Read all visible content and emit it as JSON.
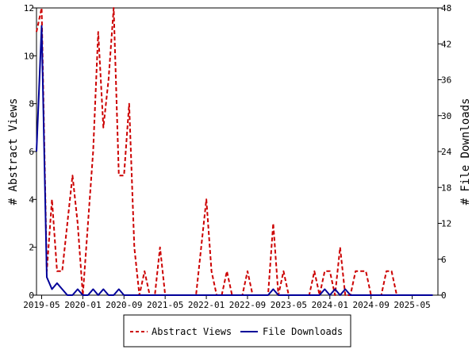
{
  "chart_data": {
    "type": "line",
    "title": "",
    "xlabel": "",
    "ylabel": "# Abstract Views",
    "ylabel_right": "# File Downloads",
    "x_ticks": [
      "2019-05",
      "2020-01",
      "2020-09",
      "2021-05",
      "2022-01",
      "2022-09",
      "2023-05",
      "2024-01",
      "2024-09",
      "2025-05"
    ],
    "ylim_left": [
      0,
      12
    ],
    "ylim_right": [
      0,
      48
    ],
    "yticks_left": [
      "0",
      "2",
      "4",
      "6",
      "8",
      "10",
      "12"
    ],
    "yticks_right": [
      "0",
      "6",
      "12",
      "18",
      "24",
      "30",
      "36",
      "42",
      "48"
    ],
    "grid": false,
    "legend_position": "bottom",
    "series": [
      {
        "name": "Abstract Views",
        "axis": "left",
        "color": "#cc0000",
        "style": "dashed",
        "x": [
          "2019-04",
          "2019-05",
          "2019-06",
          "2019-07",
          "2019-08",
          "2019-09",
          "2019-10",
          "2019-11",
          "2019-12",
          "2020-01",
          "2020-02",
          "2020-03",
          "2020-04",
          "2020-05",
          "2020-06",
          "2020-07",
          "2020-08",
          "2020-09",
          "2020-10",
          "2020-11",
          "2020-12",
          "2021-01",
          "2021-02",
          "2021-03",
          "2021-04",
          "2021-05",
          "2021-06",
          "2021-07",
          "2021-08",
          "2021-09",
          "2021-10",
          "2021-11",
          "2021-12",
          "2022-01",
          "2022-02",
          "2022-03",
          "2022-04",
          "2022-05",
          "2022-06",
          "2022-07",
          "2022-08",
          "2022-09",
          "2022-10",
          "2022-11",
          "2022-12",
          "2023-01",
          "2023-02",
          "2023-03",
          "2023-04",
          "2023-05",
          "2023-06",
          "2023-07",
          "2023-08",
          "2023-09",
          "2023-10",
          "2023-11",
          "2023-12",
          "2024-01",
          "2024-02",
          "2024-03",
          "2024-04",
          "2024-05",
          "2024-06",
          "2024-07",
          "2024-08",
          "2024-09",
          "2024-10",
          "2024-11",
          "2024-12",
          "2025-01",
          "2025-02",
          "2025-03",
          "2025-04",
          "2025-05",
          "2025-06",
          "2025-07",
          "2025-08",
          "2025-09"
        ],
        "values": [
          11,
          12,
          1,
          4,
          1,
          1,
          3,
          5,
          3,
          0,
          3,
          6,
          11,
          7,
          9,
          12,
          5,
          5,
          8,
          2,
          0,
          1,
          0,
          0,
          2,
          0,
          0,
          0,
          0,
          0,
          0,
          0,
          2,
          4,
          1,
          0,
          0,
          1,
          0,
          0,
          0,
          1,
          0,
          0,
          0,
          0,
          3,
          0,
          1,
          0,
          0,
          0,
          0,
          0,
          1,
          0,
          1,
          1,
          0,
          2,
          0,
          0,
          1,
          1,
          1,
          0,
          0,
          0,
          1,
          1,
          0,
          0,
          0,
          0,
          0,
          0,
          0,
          0
        ]
      },
      {
        "name": "File Downloads",
        "axis": "right",
        "color": "#000099",
        "style": "solid",
        "x": [
          "2019-04",
          "2019-05",
          "2019-06",
          "2019-07",
          "2019-08",
          "2019-09",
          "2019-10",
          "2019-11",
          "2019-12",
          "2020-01",
          "2020-02",
          "2020-03",
          "2020-04",
          "2020-05",
          "2020-06",
          "2020-07",
          "2020-08",
          "2020-09",
          "2020-10",
          "2020-11",
          "2020-12",
          "2021-01",
          "2021-02",
          "2021-03",
          "2021-04",
          "2021-05",
          "2021-06",
          "2021-07",
          "2021-08",
          "2021-09",
          "2021-10",
          "2021-11",
          "2021-12",
          "2022-01",
          "2022-02",
          "2022-03",
          "2022-04",
          "2022-05",
          "2022-06",
          "2022-07",
          "2022-08",
          "2022-09",
          "2022-10",
          "2022-11",
          "2022-12",
          "2023-01",
          "2023-02",
          "2023-03",
          "2023-04",
          "2023-05",
          "2023-06",
          "2023-07",
          "2023-08",
          "2023-09",
          "2023-10",
          "2023-11",
          "2023-12",
          "2024-01",
          "2024-02",
          "2024-03",
          "2024-04",
          "2024-05",
          "2024-06",
          "2024-07",
          "2024-08",
          "2024-09",
          "2024-10",
          "2024-11",
          "2024-12",
          "2025-01",
          "2025-02",
          "2025-03",
          "2025-04",
          "2025-05",
          "2025-06",
          "2025-07",
          "2025-08",
          "2025-09"
        ],
        "values": [
          24,
          45,
          3,
          1,
          2,
          1,
          0,
          0,
          1,
          0,
          0,
          1,
          0,
          1,
          0,
          0,
          1,
          0,
          0,
          0,
          0,
          0,
          0,
          0,
          0,
          0,
          0,
          0,
          0,
          0,
          0,
          0,
          0,
          0,
          0,
          0,
          0,
          0,
          0,
          0,
          0,
          0,
          0,
          0,
          0,
          0,
          1,
          0,
          0,
          0,
          0,
          0,
          0,
          0,
          0,
          0,
          1,
          0,
          1,
          0,
          1,
          0,
          0,
          0,
          0,
          0,
          0,
          0,
          0,
          0,
          0,
          0,
          0,
          0,
          0,
          0,
          0,
          0
        ]
      }
    ]
  }
}
